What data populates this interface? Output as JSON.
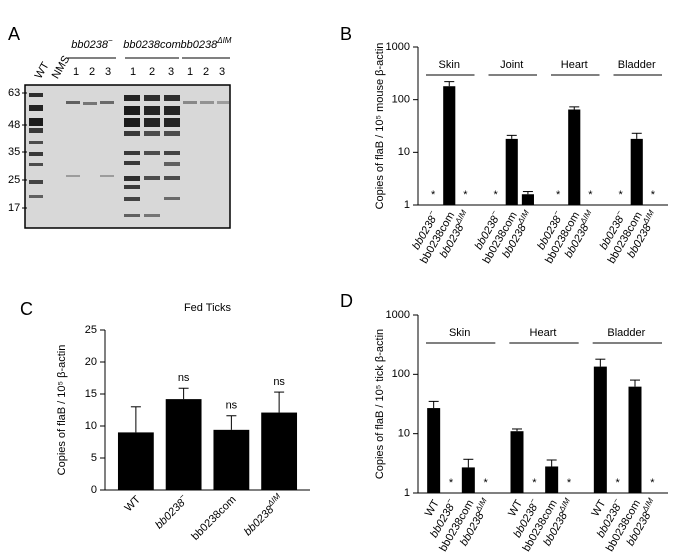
{
  "blot": {
    "panel": "A",
    "lanes": [
      "WT",
      "NMS"
    ],
    "groups": [
      {
        "name": {
          "text": "bb0238",
          "sup": "−"
        },
        "lanes": [
          "1",
          "2",
          "3"
        ]
      },
      {
        "name": "bb0238com",
        "lanes": [
          "1",
          "2",
          "3"
        ]
      },
      {
        "name": {
          "text": "bb0238",
          "sup": "ΔIM"
        },
        "lanes": [
          "1",
          "2",
          "3"
        ]
      }
    ],
    "mw_markers": [
      63,
      48,
      35,
      25,
      17
    ]
  },
  "chart_data": [
    {
      "type": "bar",
      "panel": "B",
      "ylabel": "Copies of flaB / 10⁵ mouse β-actin",
      "log_y": true,
      "ylim": [
        1,
        1000
      ],
      "yticks": [
        1,
        10,
        100,
        1000
      ],
      "color": "#000000",
      "groups": [
        {
          "name": "Skin",
          "categories": [
            {
              "text": "bb0238",
              "sup": "−"
            },
            "bb0238com",
            {
              "text": "bb0238",
              "sup": "ΔIM"
            }
          ],
          "values": [
            null,
            180,
            null
          ],
          "errors": [
            null,
            40,
            null
          ],
          "value_labels": [
            "*",
            null,
            "*"
          ]
        },
        {
          "name": "Joint",
          "categories": [
            {
              "text": "bb0238",
              "sup": "−"
            },
            "bb0238com",
            {
              "text": "bb0238",
              "sup": "ΔIM"
            }
          ],
          "values": [
            null,
            18,
            1.6
          ],
          "errors": [
            null,
            3,
            0.2
          ],
          "value_labels": [
            "*",
            null,
            null
          ]
        },
        {
          "name": "Heart",
          "categories": [
            {
              "text": "bb0238",
              "sup": "−"
            },
            "bb0238com",
            {
              "text": "bb0238",
              "sup": "ΔIM"
            }
          ],
          "values": [
            null,
            65,
            null
          ],
          "errors": [
            null,
            8,
            null
          ],
          "value_labels": [
            "*",
            null,
            "*"
          ]
        },
        {
          "name": "Bladder",
          "categories": [
            {
              "text": "bb0238",
              "sup": "−"
            },
            "bb0238com",
            {
              "text": "bb0238",
              "sup": "ΔIM"
            }
          ],
          "values": [
            null,
            18,
            null
          ],
          "errors": [
            null,
            5,
            null
          ],
          "value_labels": [
            "*",
            null,
            "*"
          ]
        }
      ]
    },
    {
      "type": "bar",
      "panel": "C",
      "title": "Fed Ticks",
      "ylabel": "Copies of flaB / 10⁵  β-actin",
      "log_y": false,
      "ylim": [
        0,
        25
      ],
      "yticks": [
        0,
        5,
        10,
        15,
        20,
        25
      ],
      "color": "#000000",
      "categories": [
        "WT",
        {
          "text": "bb0238",
          "sup": "−"
        },
        "bb0238com",
        {
          "text": "bb0238",
          "sup": "ΔIM"
        }
      ],
      "values": [
        9,
        14.2,
        9.4,
        12.1
      ],
      "errors": [
        4,
        1.7,
        2.2,
        3.2
      ],
      "value_labels": [
        null,
        "ns",
        "ns",
        "ns"
      ]
    },
    {
      "type": "bar",
      "panel": "D",
      "ylabel": "Copies of flaB / 10⁵ tick β-actin",
      "log_y": true,
      "ylim": [
        1,
        1000
      ],
      "yticks": [
        1,
        10,
        100,
        1000
      ],
      "color": "#000000",
      "groups": [
        {
          "name": "Skin",
          "categories": [
            "WT",
            {
              "text": "bb0238",
              "sup": "−"
            },
            "bb0238com",
            {
              "text": "bb0238",
              "sup": "ΔIM"
            }
          ],
          "values": [
            27,
            null,
            2.7,
            null
          ],
          "errors": [
            8,
            null,
            1,
            null
          ],
          "value_labels": [
            null,
            "*",
            null,
            "*"
          ]
        },
        {
          "name": "Heart",
          "categories": [
            "WT",
            {
              "text": "bb0238",
              "sup": "−"
            },
            "bb0238com",
            {
              "text": "bb0238",
              "sup": "ΔIM"
            }
          ],
          "values": [
            11,
            null,
            2.8,
            null
          ],
          "errors": [
            1,
            null,
            0.8,
            null
          ],
          "value_labels": [
            null,
            "*",
            null,
            "*"
          ]
        },
        {
          "name": "Bladder",
          "categories": [
            "WT",
            {
              "text": "bb0238",
              "sup": "−"
            },
            "bb0238com",
            {
              "text": "bb0238",
              "sup": "ΔIM"
            }
          ],
          "values": [
            135,
            null,
            62,
            null
          ],
          "errors": [
            45,
            null,
            18,
            null
          ],
          "value_labels": [
            null,
            "*",
            null,
            "*"
          ]
        }
      ]
    }
  ]
}
